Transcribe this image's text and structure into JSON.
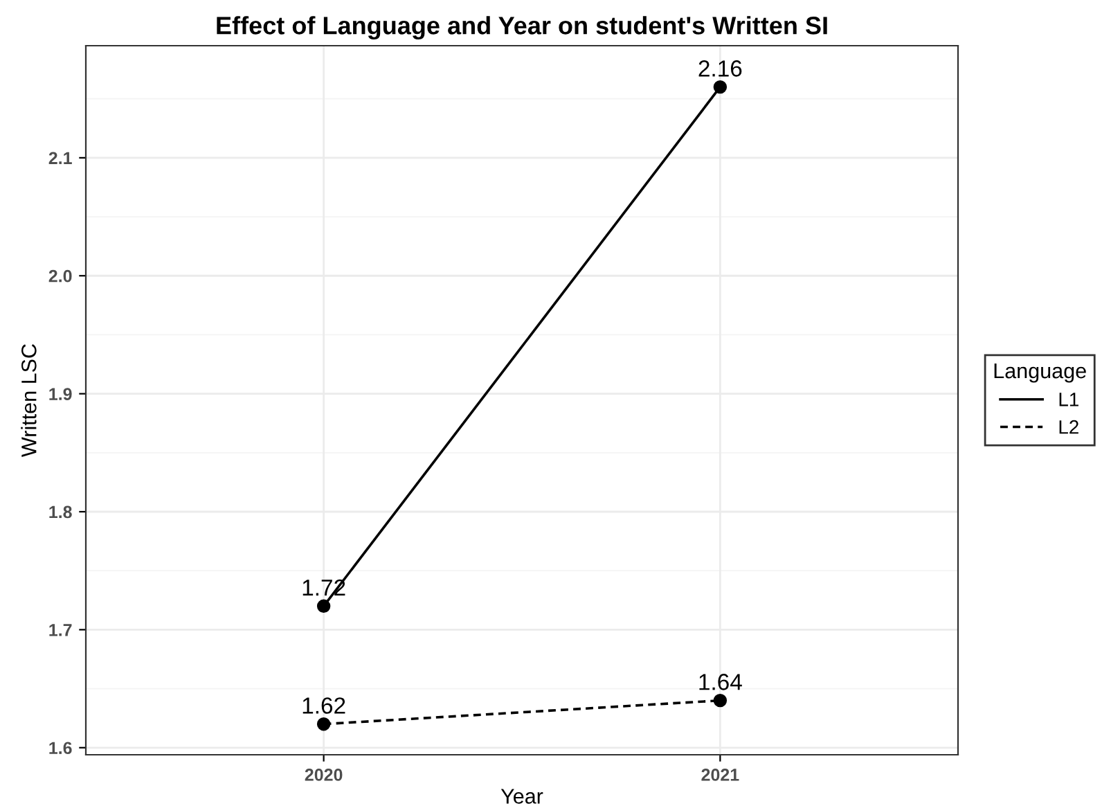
{
  "chart_data": {
    "type": "line",
    "title": "Effect of Language and Year on student's Written SI",
    "xlabel": "Year",
    "ylabel": "Written LSC",
    "legend_title": "Language",
    "categories": [
      "2020",
      "2021"
    ],
    "series": [
      {
        "name": "L1",
        "color": "#000000",
        "values": [
          1.72,
          2.16
        ],
        "line_style": "solid"
      },
      {
        "name": "L2",
        "color": "#000000",
        "values": [
          1.62,
          1.64
        ],
        "line_style": "dashed"
      }
    ],
    "ylim": [
      1.594,
      2.195
    ],
    "yticks": [
      1.6,
      1.7,
      1.8,
      1.9,
      {
        "value": 2,
        "label": "2.0"
      },
      2.1
    ],
    "grid": true,
    "legend": "right",
    "marker": "circle",
    "data_labels": true
  }
}
